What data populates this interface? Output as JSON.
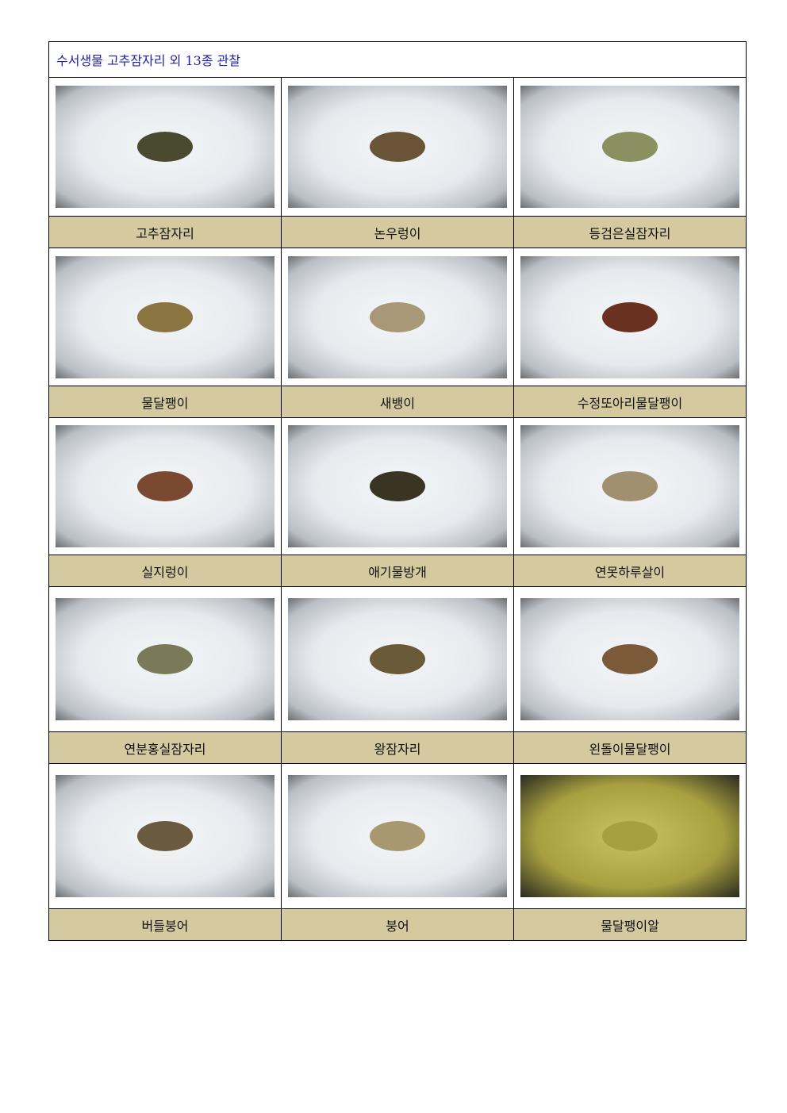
{
  "title": "수서생물   고추잠자리   외   13종  관찰",
  "rows": [
    [
      {
        "label": "고추잠자리",
        "color": "#4a4a30"
      },
      {
        "label": "논우렁이",
        "color": "#6a5438"
      },
      {
        "label": "등검은실잠자리",
        "color": "#8a9060"
      }
    ],
    [
      {
        "label": "물달팽이",
        "color": "#8a7440"
      },
      {
        "label": "새뱅이",
        "color": "#a89878"
      },
      {
        "label": "수정또아리물달팽이",
        "color": "#6a3020"
      }
    ],
    [
      {
        "label": "실지렁이",
        "color": "#7a4a30"
      },
      {
        "label": "애기물방개",
        "color": "#3a3424"
      },
      {
        "label": "연못하루살이",
        "color": "#a09070"
      }
    ],
    [
      {
        "label": "연분홍실잠자리",
        "color": "#7a7a58"
      },
      {
        "label": "왕잠자리",
        "color": "#6a5a38"
      },
      {
        "label": "왼돌이물달팽이",
        "color": "#7a5a38"
      }
    ],
    [
      {
        "label": "버들붕어",
        "color": "#6a5a40"
      },
      {
        "label": "붕어",
        "color": "#a89870"
      },
      {
        "label": "물달팽이알",
        "color": "#a8a040"
      }
    ]
  ]
}
